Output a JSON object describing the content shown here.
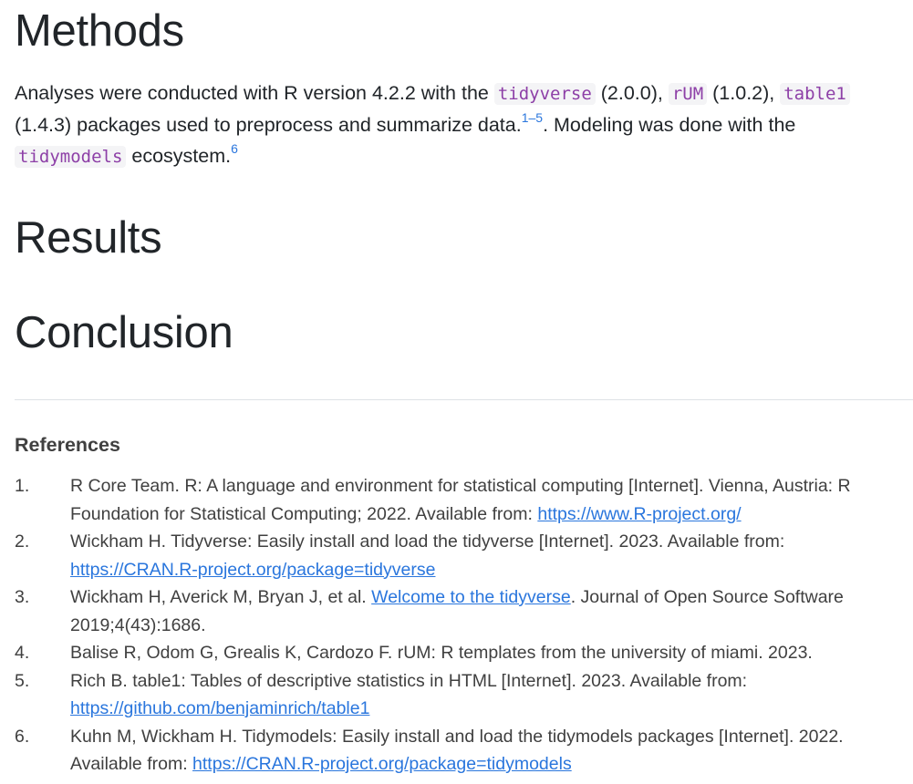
{
  "sections": {
    "methods": "Methods",
    "results": "Results",
    "conclusion": "Conclusion"
  },
  "methods_para": {
    "t1": "Analyses were conducted with R version 4.2.2 with the ",
    "pkg1": "tidyverse",
    "t2": " (2.0.0), ",
    "pkg2": "rUM",
    "t3": " (1.0.2), ",
    "pkg3": "table1",
    "t4": " (1.4.3) packages used to preprocess and summarize data.",
    "cite1": "1–5",
    "t5": ". Modeling was done with the ",
    "pkg4": "tidymodels",
    "t6": " ecosystem.",
    "cite2": "6"
  },
  "references": {
    "title": "References",
    "items": [
      {
        "num": "1.",
        "pre": "R Core Team. R: A language and environment for statistical computing [Internet]. Vienna, Austria: R Foundation for Statistical Computing; 2022. Available from: ",
        "link": "https://www.R-project.org/",
        "post": ""
      },
      {
        "num": "2.",
        "pre": "Wickham H. Tidyverse: Easily install and load the tidyverse [Internet]. 2023. Available from: ",
        "link": "https://CRAN.R-project.org/package=tidyverse",
        "post": ""
      },
      {
        "num": "3.",
        "pre": "Wickham H, Averick M, Bryan J, et al. ",
        "link": "Welcome to the tidyverse",
        "post": ". Journal of Open Source Software 2019;4(43):1686."
      },
      {
        "num": "4.",
        "pre": "Balise R, Odom G, Grealis K, Cardozo F. rUM: R templates from the university of miami. 2023.",
        "link": "",
        "post": ""
      },
      {
        "num": "5.",
        "pre": "Rich B. table1: Tables of descriptive statistics in HTML [Internet]. 2023. Available from: ",
        "link": "https://github.com/benjaminrich/table1",
        "post": ""
      },
      {
        "num": "6.",
        "pre": "Kuhn M, Wickham H. Tidymodels: Easily install and load the tidymodels packages [Internet]. 2022. Available from: ",
        "link": "https://CRAN.R-project.org/package=tidymodels",
        "post": ""
      }
    ]
  }
}
